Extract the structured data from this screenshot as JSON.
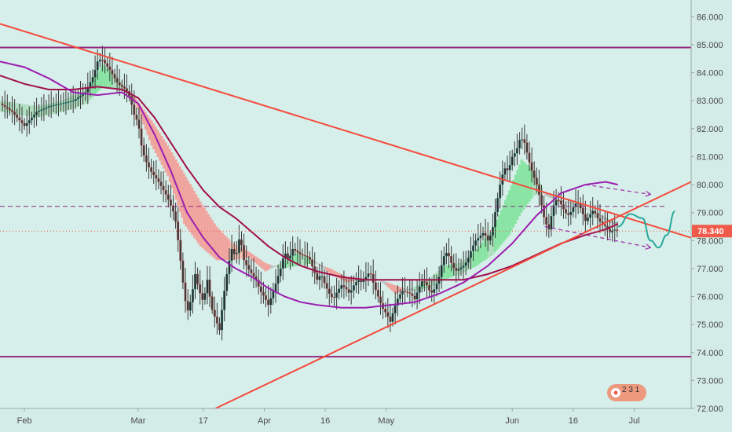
{
  "chart_data": {
    "type": "candlestick",
    "title": "",
    "xlabel": "",
    "ylabel": "",
    "ylim": [
      72.0,
      86.6
    ],
    "y_ticks": [
      72.0,
      73.0,
      74.0,
      75.0,
      76.0,
      77.0,
      78.0,
      79.0,
      80.0,
      81.0,
      82.0,
      83.0,
      84.0,
      85.0,
      86.0
    ],
    "y_tick_labels": [
      "72.000",
      "73.000",
      "74.000",
      "75.000",
      "76.000",
      "77.000",
      "78.000",
      "79.000",
      "80.000",
      "81.000",
      "82.000",
      "83.000",
      "84.000",
      "85.000",
      "86.000"
    ],
    "x_labels": [
      {
        "label": "Feb",
        "day": 0
      },
      {
        "label": "Mar",
        "day": 28
      },
      {
        "label": "17",
        "day": 44
      },
      {
        "label": "Apr",
        "day": 59
      },
      {
        "label": "16",
        "day": 74
      },
      {
        "label": "May",
        "day": 89
      },
      {
        "label": "Jun",
        "day": 120
      },
      {
        "label": "16",
        "day": 135
      },
      {
        "label": "Jul",
        "day": 150
      }
    ],
    "x_range_days": [
      -6,
      164
    ],
    "current_price": "78.340",
    "current_price_value": 78.34,
    "dashed_level": 79.22,
    "price_path": [
      [
        -6,
        82.9
      ],
      [
        -3,
        82.6
      ],
      [
        0,
        82.1
      ],
      [
        3,
        82.6
      ],
      [
        6,
        82.8
      ],
      [
        9,
        82.9
      ],
      [
        12,
        83.0
      ],
      [
        15,
        83.3
      ],
      [
        17,
        83.9
      ],
      [
        18,
        84.4
      ],
      [
        19,
        84.5
      ],
      [
        21,
        84.1
      ],
      [
        23,
        83.6
      ],
      [
        25,
        83.4
      ],
      [
        26,
        83.1
      ],
      [
        27,
        82.5
      ],
      [
        28,
        82.2
      ],
      [
        29,
        81.2
      ],
      [
        30,
        80.8
      ],
      [
        31,
        80.5
      ],
      [
        33,
        80.1
      ],
      [
        35,
        79.6
      ],
      [
        37,
        78.9
      ],
      [
        38,
        77.8
      ],
      [
        39,
        76.5
      ],
      [
        40,
        75.4
      ],
      [
        41,
        75.9
      ],
      [
        42,
        76.8
      ],
      [
        43,
        76.2
      ],
      [
        44,
        75.8
      ],
      [
        45,
        76.6
      ],
      [
        46,
        75.6
      ],
      [
        47,
        75.2
      ],
      [
        48,
        74.8
      ],
      [
        49,
        76.0
      ],
      [
        50,
        77.0
      ],
      [
        51,
        77.7
      ],
      [
        52,
        77.4
      ],
      [
        53,
        78.2
      ],
      [
        54,
        77.3
      ],
      [
        55,
        77.0
      ],
      [
        56,
        76.8
      ],
      [
        57,
        76.6
      ],
      [
        58,
        76.2
      ],
      [
        59,
        76.0
      ],
      [
        60,
        75.7
      ],
      [
        61,
        76.1
      ],
      [
        63,
        77.0
      ],
      [
        64,
        77.6
      ],
      [
        65,
        77.3
      ],
      [
        66,
        77.7
      ],
      [
        67,
        77.6
      ],
      [
        68,
        77.5
      ],
      [
        70,
        77.4
      ],
      [
        71,
        77.0
      ],
      [
        72,
        76.6
      ],
      [
        73,
        76.8
      ],
      [
        74,
        76.4
      ],
      [
        75,
        76.1
      ],
      [
        76,
        75.9
      ],
      [
        77,
        76.2
      ],
      [
        78,
        76.4
      ],
      [
        79,
        76.3
      ],
      [
        80,
        76.1
      ],
      [
        81,
        76.4
      ],
      [
        82,
        76.6
      ],
      [
        83,
        76.5
      ],
      [
        85,
        76.9
      ],
      [
        86,
        76.4
      ],
      [
        87,
        76.0
      ],
      [
        88,
        75.6
      ],
      [
        89,
        75.4
      ],
      [
        90,
        75.1
      ],
      [
        91,
        75.6
      ],
      [
        92,
        76.0
      ],
      [
        93,
        76.2
      ],
      [
        95,
        76.1
      ],
      [
        96,
        75.9
      ],
      [
        97,
        76.3
      ],
      [
        98,
        76.6
      ],
      [
        99,
        76.4
      ],
      [
        100,
        76.1
      ],
      [
        101,
        76.3
      ],
      [
        102,
        76.7
      ],
      [
        103,
        77.4
      ],
      [
        104,
        77.6
      ],
      [
        105,
        77.2
      ],
      [
        106,
        76.9
      ],
      [
        107,
        77.0
      ],
      [
        108,
        77.1
      ],
      [
        109,
        77.3
      ],
      [
        110,
        77.7
      ],
      [
        111,
        78.0
      ],
      [
        113,
        78.3
      ],
      [
        114,
        78.0
      ],
      [
        115,
        78.3
      ],
      [
        116,
        79.2
      ],
      [
        117,
        80.0
      ],
      [
        118,
        80.6
      ],
      [
        119,
        80.5
      ],
      [
        120,
        81.0
      ],
      [
        121,
        81.2
      ],
      [
        122,
        81.7
      ],
      [
        123,
        81.5
      ],
      [
        124,
        80.9
      ],
      [
        125,
        80.4
      ],
      [
        126,
        80.0
      ],
      [
        127,
        79.4
      ],
      [
        128,
        78.7
      ],
      [
        129,
        78.4
      ],
      [
        130,
        79.2
      ],
      [
        131,
        79.5
      ],
      [
        132,
        79.3
      ],
      [
        133,
        79.0
      ],
      [
        134,
        78.9
      ],
      [
        135,
        79.2
      ],
      [
        136,
        79.4
      ],
      [
        137,
        79.1
      ],
      [
        138,
        78.7
      ],
      [
        139,
        78.9
      ],
      [
        140,
        79.1
      ],
      [
        141,
        78.8
      ],
      [
        142,
        78.6
      ],
      [
        143,
        78.5
      ],
      [
        144,
        78.3
      ],
      [
        145,
        78.4
      ],
      [
        146,
        78.34
      ]
    ],
    "ma_purple": [
      [
        -6,
        84.4
      ],
      [
        0,
        84.2
      ],
      [
        6,
        83.8
      ],
      [
        12,
        83.3
      ],
      [
        18,
        83.2
      ],
      [
        24,
        83.3
      ],
      [
        28,
        82.9
      ],
      [
        32,
        81.8
      ],
      [
        36,
        80.5
      ],
      [
        40,
        79.0
      ],
      [
        44,
        78.1
      ],
      [
        48,
        77.4
      ],
      [
        52,
        77.0
      ],
      [
        56,
        76.7
      ],
      [
        60,
        76.3
      ],
      [
        64,
        76.0
      ],
      [
        68,
        75.8
      ],
      [
        72,
        75.7
      ],
      [
        78,
        75.6
      ],
      [
        84,
        75.6
      ],
      [
        90,
        75.7
      ],
      [
        96,
        75.8
      ],
      [
        102,
        76.1
      ],
      [
        108,
        76.5
      ],
      [
        114,
        77.1
      ],
      [
        120,
        77.9
      ],
      [
        126,
        78.9
      ],
      [
        132,
        79.7
      ],
      [
        138,
        80.0
      ],
      [
        143,
        80.1
      ],
      [
        146,
        80.0
      ]
    ],
    "ma_maroon": [
      [
        -6,
        83.9
      ],
      [
        0,
        83.6
      ],
      [
        6,
        83.4
      ],
      [
        12,
        83.4
      ],
      [
        18,
        83.5
      ],
      [
        24,
        83.4
      ],
      [
        28,
        83.1
      ],
      [
        32,
        82.4
      ],
      [
        36,
        81.5
      ],
      [
        40,
        80.6
      ],
      [
        44,
        79.8
      ],
      [
        48,
        79.2
      ],
      [
        52,
        78.8
      ],
      [
        56,
        78.3
      ],
      [
        60,
        77.8
      ],
      [
        64,
        77.4
      ],
      [
        68,
        77.1
      ],
      [
        72,
        76.9
      ],
      [
        78,
        76.7
      ],
      [
        84,
        76.6
      ],
      [
        90,
        76.6
      ],
      [
        96,
        76.6
      ],
      [
        102,
        76.6
      ],
      [
        108,
        76.6
      ],
      [
        114,
        76.8
      ],
      [
        120,
        77.1
      ],
      [
        126,
        77.5
      ],
      [
        132,
        77.9
      ],
      [
        138,
        78.2
      ],
      [
        143,
        78.4
      ],
      [
        146,
        78.6
      ]
    ],
    "ribbon_upper": [
      [
        -6,
        83.0
      ],
      [
        3,
        82.8
      ],
      [
        9,
        83.0
      ],
      [
        15,
        83.4
      ],
      [
        19,
        84.3
      ],
      [
        23,
        83.8
      ],
      [
        27,
        82.9
      ],
      [
        31,
        81.4
      ],
      [
        35,
        80.3
      ],
      [
        39,
        78.6
      ],
      [
        43,
        77.8
      ],
      [
        47,
        77.3
      ],
      [
        51,
        77.3
      ],
      [
        55,
        77.4
      ],
      [
        59,
        76.9
      ],
      [
        63,
        77.2
      ],
      [
        67,
        77.6
      ],
      [
        71,
        77.3
      ],
      [
        75,
        76.8
      ],
      [
        79,
        76.5
      ],
      [
        83,
        76.6
      ],
      [
        87,
        76.6
      ],
      [
        91,
        76.1
      ],
      [
        95,
        76.3
      ],
      [
        99,
        76.6
      ],
      [
        103,
        77.1
      ],
      [
        107,
        77.2
      ],
      [
        111,
        77.7
      ],
      [
        115,
        78.4
      ],
      [
        119,
        79.8
      ],
      [
        122,
        80.9
      ],
      [
        125,
        80.5
      ],
      [
        128,
        79.6
      ],
      [
        131,
        79.4
      ],
      [
        135,
        79.3
      ],
      [
        139,
        79.1
      ],
      [
        143,
        78.7
      ],
      [
        146,
        78.5
      ]
    ],
    "ribbon_lower": [
      [
        -6,
        82.6
      ],
      [
        3,
        82.4
      ],
      [
        9,
        82.6
      ],
      [
        15,
        82.9
      ],
      [
        19,
        83.5
      ],
      [
        23,
        83.4
      ],
      [
        27,
        83.1
      ],
      [
        31,
        82.3
      ],
      [
        35,
        81.4
      ],
      [
        39,
        80.4
      ],
      [
        43,
        79.4
      ],
      [
        47,
        78.5
      ],
      [
        51,
        77.9
      ],
      [
        55,
        77.6
      ],
      [
        59,
        77.2
      ],
      [
        63,
        77.0
      ],
      [
        67,
        77.1
      ],
      [
        71,
        77.2
      ],
      [
        75,
        77.0
      ],
      [
        79,
        76.7
      ],
      [
        83,
        76.6
      ],
      [
        87,
        76.6
      ],
      [
        91,
        76.4
      ],
      [
        95,
        76.2
      ],
      [
        99,
        76.3
      ],
      [
        103,
        76.6
      ],
      [
        107,
        76.8
      ],
      [
        111,
        77.1
      ],
      [
        115,
        77.5
      ],
      [
        119,
        78.2
      ],
      [
        122,
        79.0
      ],
      [
        125,
        79.6
      ],
      [
        128,
        79.7
      ],
      [
        131,
        79.5
      ],
      [
        135,
        79.3
      ],
      [
        139,
        79.1
      ],
      [
        143,
        78.8
      ],
      [
        146,
        78.6
      ]
    ],
    "trendlines": {
      "channel_top": [
        [
          -6,
          84.9
        ],
        [
          164,
          84.9
        ]
      ],
      "channel_bottom": [
        [
          -6,
          73.85
        ],
        [
          164,
          73.85
        ]
      ],
      "red_descending": [
        [
          -6,
          85.75
        ],
        [
          164,
          78.1
        ]
      ],
      "red_ascending": [
        [
          47,
          72.0
        ],
        [
          164,
          80.1
        ]
      ]
    },
    "projections": {
      "dashed_arrow_upper": [
        [
          138,
          80.0
        ],
        [
          154,
          79.65
        ]
      ],
      "dashed_arrow_lower": [
        [
          128,
          78.5
        ],
        [
          154,
          77.75
        ]
      ],
      "forecast_curve": [
        [
          146,
          78.5
        ],
        [
          149,
          78.95
        ],
        [
          152,
          78.8
        ],
        [
          154,
          78.0
        ],
        [
          156,
          77.75
        ],
        [
          158,
          78.2
        ],
        [
          160,
          79.05
        ]
      ]
    },
    "badge": "2 3 1"
  }
}
